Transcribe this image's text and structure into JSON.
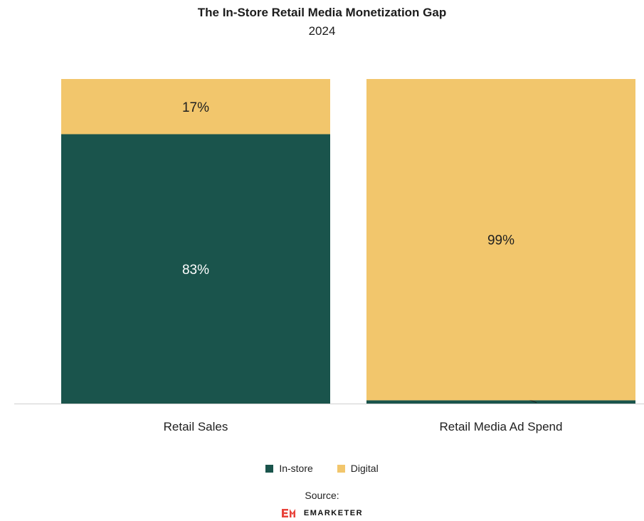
{
  "chart_data": {
    "type": "bar",
    "stacked": true,
    "normalized_percent": true,
    "title": "The In-Store Retail Media Monetization Gap",
    "subtitle": "2024",
    "categories": [
      "Retail Sales",
      "Retail Media Ad Spend"
    ],
    "series": [
      {
        "name": "In-store",
        "color": "#1a544c",
        "values": [
          83,
          1
        ],
        "labels": [
          "83%",
          "1%"
        ]
      },
      {
        "name": "Digital",
        "color": "#f2c66c",
        "values": [
          17,
          99
        ],
        "labels": [
          "17%",
          "99%"
        ]
      }
    ],
    "ylim": [
      0,
      100
    ],
    "grid": false,
    "legend": "bottom-center"
  },
  "source_label": "Source:",
  "logo": {
    "mark": "EM",
    "text": "EMARKETER",
    "color": "#e8423a"
  }
}
